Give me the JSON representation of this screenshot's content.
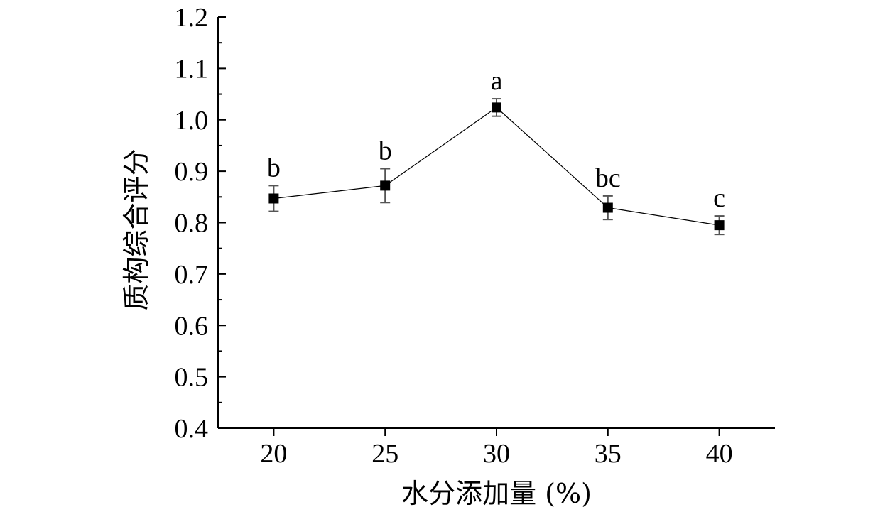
{
  "chart_data": {
    "type": "line",
    "xlabel": "水分添加量 (%)",
    "ylabel": "质构综合评分",
    "x": [
      20,
      25,
      30,
      35,
      40
    ],
    "xticks": [
      "20",
      "25",
      "30",
      "35",
      "40"
    ],
    "ylim": [
      0.4,
      1.2
    ],
    "yticks": [
      "0.4",
      "0.5",
      "0.6",
      "0.7",
      "0.8",
      "0.9",
      "1.0",
      "1.1",
      "1.2"
    ],
    "series": [
      {
        "values": [
          0.847,
          0.872,
          1.024,
          0.829,
          0.795
        ],
        "errors": [
          0.025,
          0.033,
          0.017,
          0.023,
          0.018
        ],
        "labels": [
          "b",
          "b",
          "a",
          "bc",
          "c"
        ]
      }
    ],
    "grid": false,
    "colors": {
      "line": "#000000",
      "marker": "#000000",
      "error_bar": "#555555"
    }
  }
}
